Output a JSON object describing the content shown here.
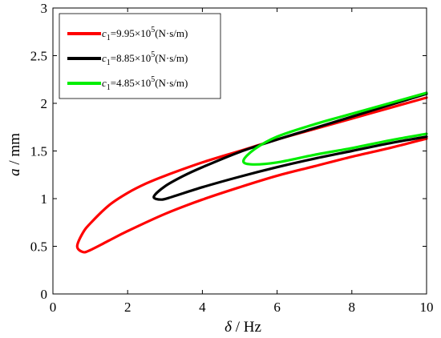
{
  "chart_data": {
    "type": "line",
    "xlabel": {
      "symbol": "δ",
      "unit": " / Hz"
    },
    "ylabel": {
      "symbol": "a",
      "unit": " / mm"
    },
    "xlim": [
      0,
      10
    ],
    "ylim": [
      0,
      3
    ],
    "xticks": [
      "0",
      "2",
      "4",
      "6",
      "8",
      "10"
    ],
    "yticks": [
      "0",
      "0.5",
      "1",
      "1.5",
      "2",
      "2.5",
      "3"
    ],
    "grid": false,
    "legend_position": "top-left",
    "series": [
      {
        "label": {
          "sym": "c",
          "sub": "1",
          "mant": "=9.95×10",
          "exp": "5",
          "unit": "(N·s/m)"
        },
        "color": "#ff0000",
        "upper": [
          [
            0.65,
            0.5
          ],
          [
            0.8,
            0.64
          ],
          [
            1.0,
            0.74
          ],
          [
            1.5,
            0.93
          ],
          [
            2.0,
            1.06
          ],
          [
            2.5,
            1.16
          ],
          [
            3.0,
            1.24
          ],
          [
            4.0,
            1.38
          ],
          [
            5.0,
            1.5
          ],
          [
            6.0,
            1.62
          ],
          [
            7.0,
            1.73
          ],
          [
            8.0,
            1.84
          ],
          [
            9.0,
            1.95
          ],
          [
            10.0,
            2.06
          ]
        ],
        "lower": [
          [
            0.65,
            0.5
          ],
          [
            0.8,
            0.44
          ],
          [
            1.0,
            0.46
          ],
          [
            1.5,
            0.56
          ],
          [
            2.0,
            0.66
          ],
          [
            3.0,
            0.84
          ],
          [
            4.0,
            0.99
          ],
          [
            5.0,
            1.12
          ],
          [
            6.0,
            1.24
          ],
          [
            7.0,
            1.34
          ],
          [
            8.0,
            1.44
          ],
          [
            9.0,
            1.53
          ],
          [
            10.0,
            1.63
          ]
        ]
      },
      {
        "label": {
          "sym": "c",
          "sub": "1",
          "mant": "=8.85×10",
          "exp": "5",
          "unit": "(N·s/m)"
        },
        "color": "#000000",
        "upper": [
          [
            2.7,
            1.02
          ],
          [
            3.0,
            1.13
          ],
          [
            3.5,
            1.24
          ],
          [
            4.0,
            1.33
          ],
          [
            5.0,
            1.49
          ],
          [
            6.0,
            1.62
          ],
          [
            7.0,
            1.74
          ],
          [
            8.0,
            1.86
          ],
          [
            9.0,
            1.98
          ],
          [
            10.0,
            2.1
          ]
        ],
        "lower": [
          [
            2.7,
            1.02
          ],
          [
            2.9,
            0.99
          ],
          [
            3.2,
            1.02
          ],
          [
            4.0,
            1.12
          ],
          [
            5.0,
            1.23
          ],
          [
            6.0,
            1.33
          ],
          [
            7.0,
            1.42
          ],
          [
            8.0,
            1.5
          ],
          [
            9.0,
            1.58
          ],
          [
            10.0,
            1.65
          ]
        ]
      },
      {
        "label": {
          "sym": "c",
          "sub": "1",
          "mant": "=4.85×10",
          "exp": "5",
          "unit": "(N·s/m)"
        },
        "color": "#00ee00",
        "upper": [
          [
            5.1,
            1.4
          ],
          [
            5.4,
            1.52
          ],
          [
            6.0,
            1.65
          ],
          [
            7.0,
            1.78
          ],
          [
            8.0,
            1.89
          ],
          [
            9.0,
            2.0
          ],
          [
            10.0,
            2.11
          ]
        ],
        "lower": [
          [
            5.1,
            1.4
          ],
          [
            5.3,
            1.36
          ],
          [
            6.0,
            1.38
          ],
          [
            7.0,
            1.46
          ],
          [
            8.0,
            1.53
          ],
          [
            9.0,
            1.61
          ],
          [
            10.0,
            1.68
          ]
        ]
      }
    ]
  }
}
